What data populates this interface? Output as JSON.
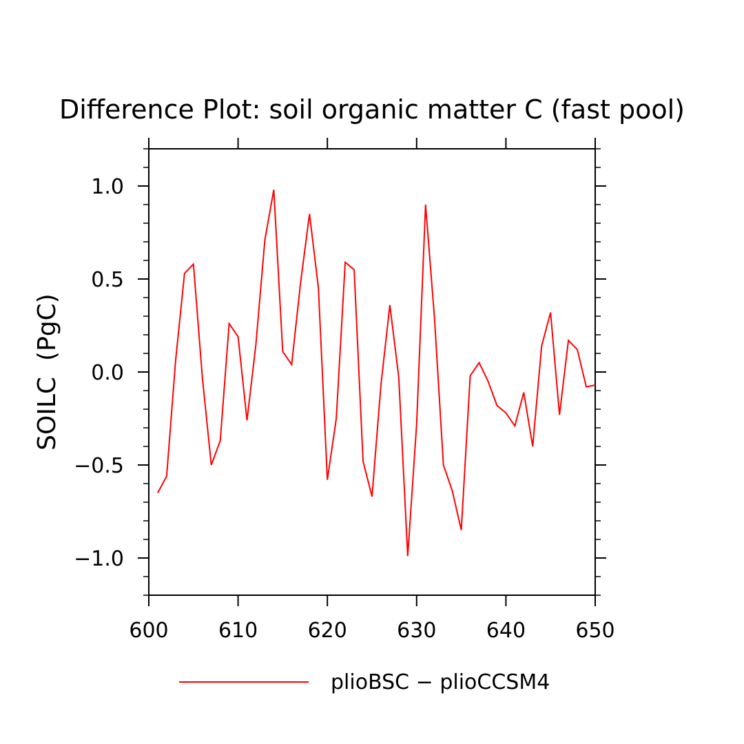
{
  "chart_data": {
    "type": "line",
    "title": "Difference Plot: soil organic matter C (fast pool)",
    "xlabel": "",
    "ylabel": "SOILC  (PgC)",
    "xlim": [
      600,
      650
    ],
    "ylim": [
      -1.2,
      1.2
    ],
    "x_ticks": [
      600,
      610,
      620,
      630,
      640,
      650
    ],
    "x_tick_labels": [
      "600",
      "610",
      "620",
      "630",
      "640",
      "650"
    ],
    "y_ticks": [
      -1.0,
      -0.5,
      0.0,
      0.5,
      1.0
    ],
    "y_tick_labels": [
      "−1.0",
      "−0.5",
      "0.0",
      "0.5",
      "1.0"
    ],
    "grid": false,
    "legend_position": "bottom-center",
    "series": [
      {
        "name": "plioBSC − plioCCSM4",
        "color": "#ff0000",
        "x": [
          601,
          602,
          603,
          604,
          605,
          606,
          607,
          608,
          609,
          610,
          611,
          612,
          613,
          614,
          615,
          616,
          617,
          618,
          619,
          620,
          621,
          622,
          623,
          624,
          625,
          626,
          627,
          628,
          629,
          630,
          631,
          632,
          633,
          634,
          635,
          636,
          637,
          638,
          639,
          640,
          641,
          642,
          643,
          644,
          645,
          646,
          647,
          648,
          649,
          650
        ],
        "values": [
          -0.65,
          -0.56,
          0.06,
          0.53,
          0.58,
          -0.03,
          -0.5,
          -0.37,
          0.26,
          0.19,
          -0.26,
          0.15,
          0.71,
          0.98,
          0.11,
          0.04,
          0.48,
          0.85,
          0.45,
          -0.58,
          -0.25,
          0.59,
          0.55,
          -0.48,
          -0.67,
          -0.07,
          0.36,
          -0.03,
          -0.99,
          -0.28,
          0.9,
          0.29,
          -0.5,
          -0.64,
          -0.85,
          -0.02,
          0.05,
          -0.05,
          -0.18,
          -0.22,
          -0.29,
          -0.11,
          -0.4,
          0.14,
          0.32,
          -0.23,
          0.17,
          0.12,
          -0.08,
          -0.07
        ]
      }
    ]
  }
}
